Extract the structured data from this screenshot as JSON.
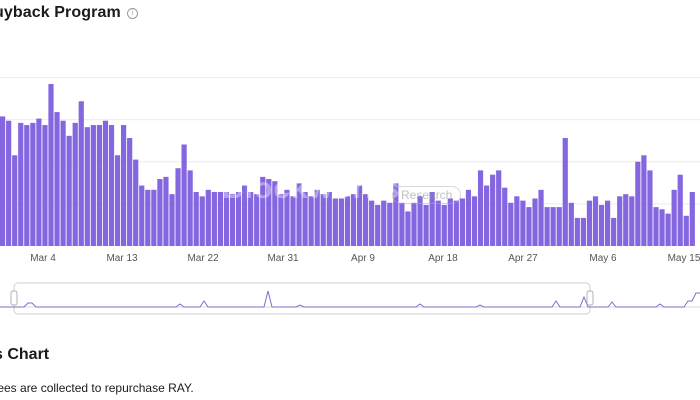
{
  "header": {
    "title": "uyback Program",
    "info_icon": "info-icon"
  },
  "watermark": {
    "brand": "Blockworks",
    "sub": "Research"
  },
  "section": {
    "title": "s Chart",
    "description": "fees are collected to repurchase RAY."
  },
  "colors": {
    "bar": "#8466e0",
    "grid": "#ececec",
    "nav_line": "#7b6fd0",
    "nav_border": "#cfcfcf"
  },
  "chart_data": {
    "type": "bar",
    "title": "",
    "xlabel": "",
    "ylabel": "",
    "x_tick_labels": [
      "Mar 4",
      "Mar 13",
      "Mar 22",
      "Mar 31",
      "Apr 9",
      "Apr 18",
      "Apr 27",
      "May 6",
      "May 15"
    ],
    "ylim": [
      0,
      100
    ],
    "grid": true,
    "values": [
      60,
      58,
      42,
      57,
      56,
      57,
      59,
      56,
      75,
      62,
      58,
      51,
      57,
      67,
      55,
      56,
      56,
      58,
      56,
      42,
      56,
      50,
      40,
      28,
      26,
      26,
      31,
      32,
      24,
      36,
      47,
      35,
      25,
      23,
      26,
      25,
      25,
      25,
      24,
      25,
      28,
      25,
      24,
      32,
      31,
      30,
      24,
      26,
      23,
      29,
      25,
      23,
      26,
      24,
      25,
      22,
      22,
      23,
      24,
      28,
      24,
      21,
      19,
      21,
      20,
      29,
      20,
      16,
      20,
      23,
      19,
      25,
      21,
      19,
      22,
      21,
      22,
      26,
      23,
      35,
      28,
      33,
      35,
      27,
      20,
      23,
      21,
      18,
      22,
      26,
      18,
      18,
      18,
      50,
      20,
      13,
      13,
      21,
      23,
      19,
      21,
      13,
      23,
      24,
      23,
      39,
      42,
      35,
      18,
      17,
      15,
      26,
      33,
      14,
      25
    ]
  }
}
